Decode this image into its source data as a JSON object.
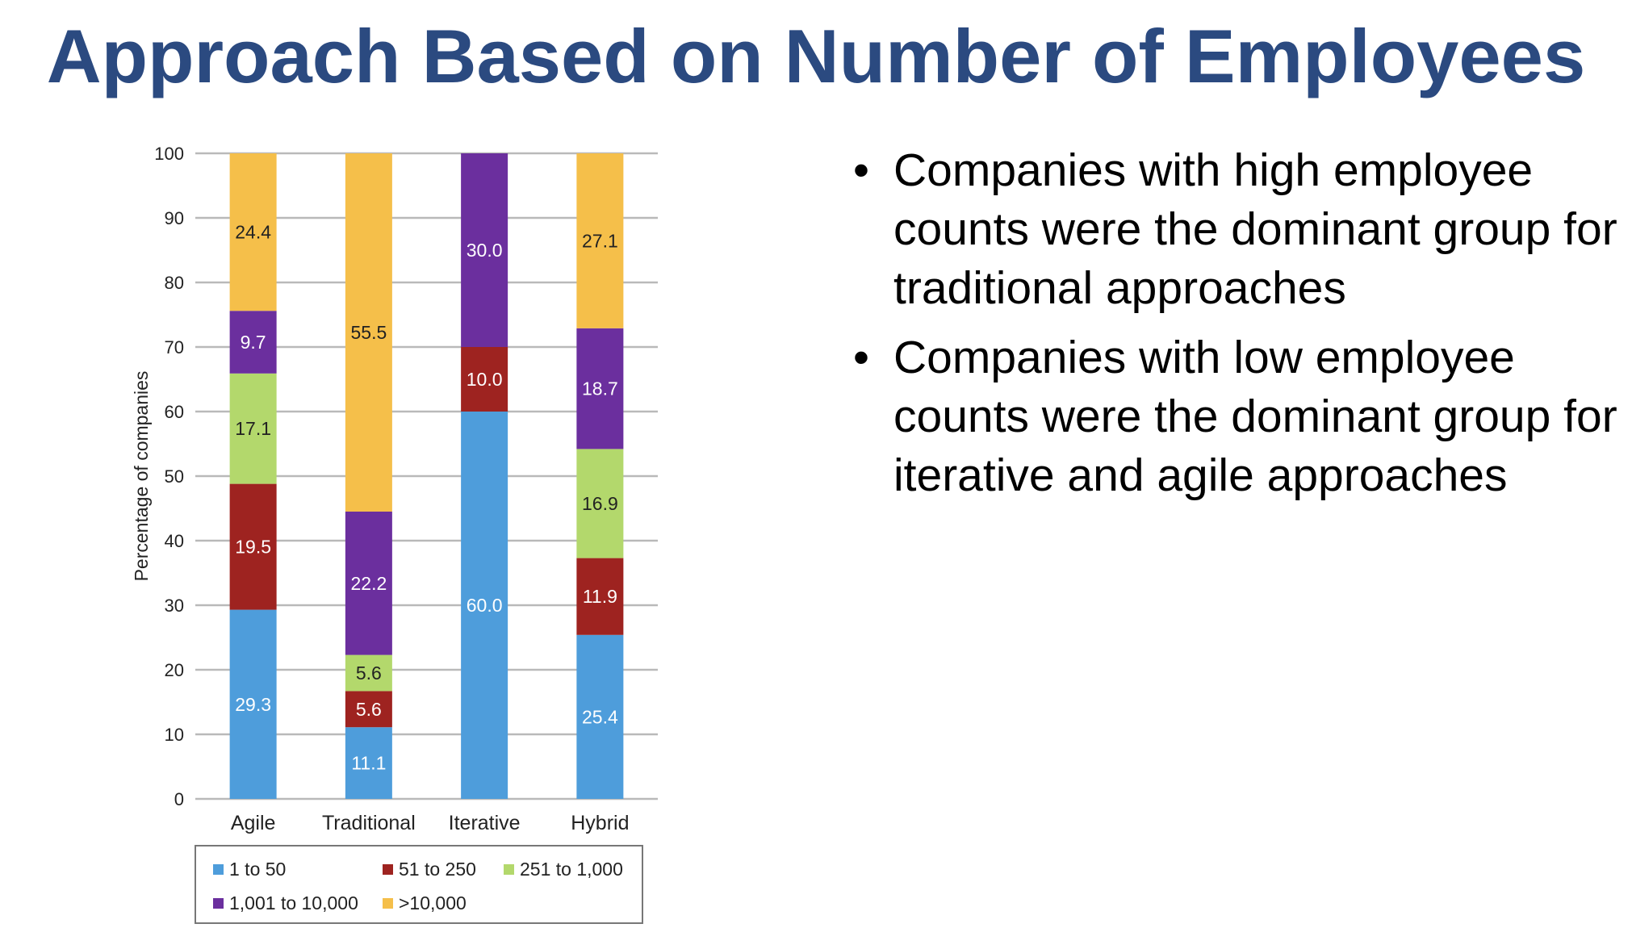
{
  "slide": {
    "title": "Approach Based on Number of Employees",
    "bullets": [
      "Companies with high employee counts were the dominant group for traditional approaches",
      "Companies with low employee counts were the dominant group for iterative and agile approaches"
    ],
    "bullet_glyph": "•"
  },
  "chart_data": {
    "type": "bar",
    "stacked": true,
    "title": "",
    "xlabel": "",
    "ylabel": "Percentage of companies",
    "ylim": [
      0,
      100
    ],
    "yticks": [
      0,
      10,
      20,
      30,
      40,
      50,
      60,
      70,
      80,
      90,
      100
    ],
    "grid": "horizontal",
    "legend_position": "bottom",
    "categories": [
      "Agile",
      "Traditional",
      "Iterative",
      "Hybrid"
    ],
    "series": [
      {
        "name": "1 to 50",
        "color": "#4e9ddb",
        "label_color": "#ffffff",
        "values": [
          29.3,
          11.1,
          60.0,
          25.4
        ]
      },
      {
        "name": "51 to 250",
        "color": "#9e2320",
        "label_color": "#ffffff",
        "values": [
          19.5,
          5.6,
          10.0,
          11.9
        ]
      },
      {
        "name": "251 to 1,000",
        "color": "#b3d86c",
        "label_color": "#222222",
        "values": [
          17.1,
          5.6,
          null,
          16.9
        ]
      },
      {
        "name": "1,001 to 10,000",
        "color": "#6b2f9e",
        "label_color": "#ffffff",
        "values": [
          9.7,
          22.2,
          30.0,
          18.7
        ]
      },
      {
        "name": ">10,000",
        "color": "#f5bf4a",
        "label_color": "#222222",
        "values": [
          24.4,
          55.5,
          null,
          27.1
        ]
      }
    ]
  }
}
